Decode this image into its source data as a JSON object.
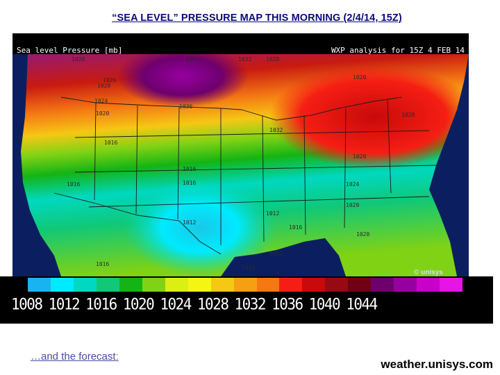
{
  "slide": {
    "title": "“SEA LEVEL” PRESSURE MAP THIS MORNING (2/4/14, 15Z)"
  },
  "map": {
    "header_left": "Sea level Pressure [mb]",
    "header_right": "WXP analysis for 15Z  4 FEB 14",
    "logo": "© unisys",
    "isobar_labels": [
      "1028",
      "1016",
      "1032",
      "1028",
      "1020",
      "1028",
      "1024",
      "1020",
      "1016",
      "1036",
      "1032",
      "1028",
      "1024",
      "1020",
      "1016",
      "1016",
      "1016",
      "1012",
      "1016",
      "1012",
      "1012",
      "1016",
      "1020",
      "1012",
      "1020",
      "1020"
    ]
  },
  "legend": {
    "colors": [
      "#19b4f0",
      "#00eaff",
      "#00d8c0",
      "#10c878",
      "#14b414",
      "#80d214",
      "#dcef14",
      "#f5f514",
      "#f5c814",
      "#f5a014",
      "#f57814",
      "#f51e14",
      "#c80a0a",
      "#960a14",
      "#700014",
      "#6e006e",
      "#9600a0",
      "#c800c8",
      "#e614e6"
    ],
    "labels": [
      "1008",
      "1012",
      "1016",
      "1020",
      "1024",
      "1028",
      "1032",
      "1036",
      "1040",
      "1044"
    ]
  },
  "footer": {
    "forecast_link": "…and the forecast",
    "forecast_colon": ":",
    "source": "weather.unisys.com"
  },
  "colors": {
    "title": "#0a0a7a",
    "background": "#ffffff",
    "ocean": "#0b1f60"
  }
}
